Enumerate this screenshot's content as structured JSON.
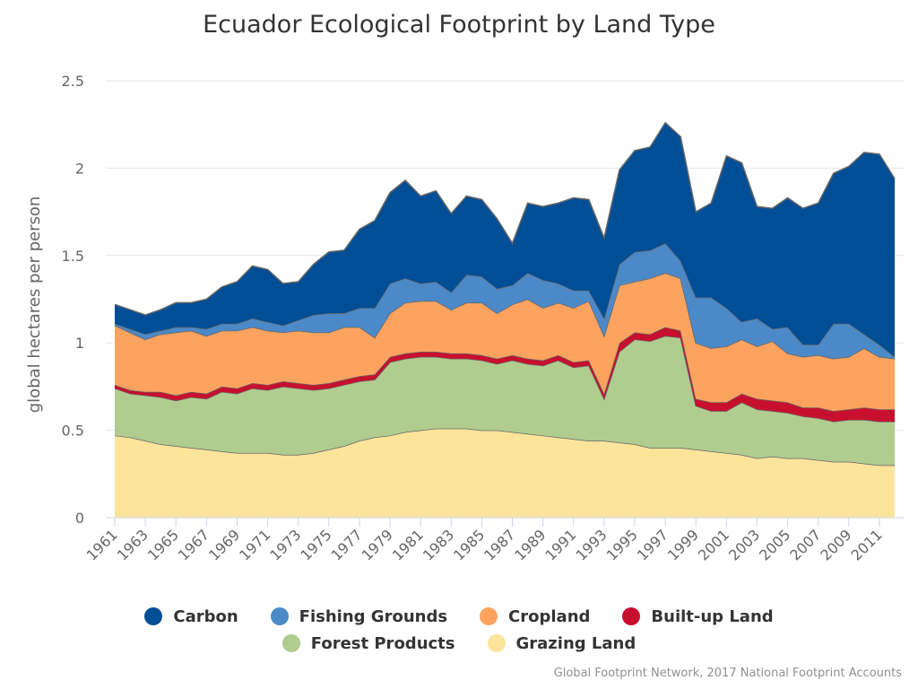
{
  "title": "Ecuador Ecological Footprint by Land Type",
  "credits": "Global Footprint Network, 2017 National Footprint Accounts",
  "chart_data": {
    "type": "area",
    "stacked": true,
    "title": "Ecuador Ecological Footprint by Land Type",
    "xlabel": "",
    "ylabel": "global hectares per person",
    "ylim": [
      0,
      2.5
    ],
    "yticks": [
      "0",
      "0.5",
      "1",
      "1.5",
      "2",
      "2.5"
    ],
    "xticks": [
      "1961",
      "1963",
      "1965",
      "1967",
      "1969",
      "1971",
      "1973",
      "1975",
      "1977",
      "1979",
      "1981",
      "1983",
      "1985",
      "1987",
      "1989",
      "1991",
      "1993",
      "1995",
      "1997",
      "1999",
      "2001",
      "2003",
      "2005",
      "2007",
      "2009",
      "2011"
    ],
    "grid": true,
    "legend_position": "bottom",
    "x": [
      1961,
      1962,
      1963,
      1964,
      1965,
      1966,
      1967,
      1968,
      1969,
      1970,
      1971,
      1972,
      1973,
      1974,
      1975,
      1976,
      1977,
      1978,
      1979,
      1980,
      1981,
      1982,
      1983,
      1984,
      1985,
      1986,
      1987,
      1988,
      1989,
      1990,
      1991,
      1992,
      1993,
      1994,
      1995,
      1996,
      1997,
      1998,
      1999,
      2000,
      2001,
      2002,
      2003,
      2004,
      2005,
      2006,
      2007,
      2008,
      2009,
      2010,
      2011,
      2012
    ],
    "series": [
      {
        "name": "Grazing Land",
        "color": "#fce49b",
        "values": [
          0.47,
          0.46,
          0.44,
          0.42,
          0.41,
          0.4,
          0.39,
          0.38,
          0.37,
          0.37,
          0.37,
          0.36,
          0.36,
          0.37,
          0.39,
          0.41,
          0.44,
          0.46,
          0.47,
          0.49,
          0.5,
          0.51,
          0.51,
          0.51,
          0.5,
          0.5,
          0.49,
          0.48,
          0.47,
          0.46,
          0.45,
          0.44,
          0.44,
          0.43,
          0.42,
          0.4,
          0.4,
          0.4,
          0.39,
          0.38,
          0.37,
          0.36,
          0.34,
          0.35,
          0.34,
          0.34,
          0.33,
          0.32,
          0.32,
          0.31,
          0.3,
          0.3
        ]
      },
      {
        "name": "Forest Products",
        "color": "#b1cc8f",
        "values": [
          0.27,
          0.25,
          0.26,
          0.27,
          0.26,
          0.29,
          0.29,
          0.34,
          0.34,
          0.37,
          0.36,
          0.39,
          0.38,
          0.36,
          0.35,
          0.35,
          0.34,
          0.33,
          0.42,
          0.42,
          0.42,
          0.41,
          0.4,
          0.4,
          0.4,
          0.38,
          0.41,
          0.4,
          0.4,
          0.44,
          0.41,
          0.43,
          0.24,
          0.52,
          0.6,
          0.61,
          0.64,
          0.63,
          0.25,
          0.23,
          0.24,
          0.3,
          0.28,
          0.26,
          0.26,
          0.24,
          0.24,
          0.23,
          0.24,
          0.25,
          0.25,
          0.25
        ]
      },
      {
        "name": "Built-up Land",
        "color": "#c8102e",
        "values": [
          0.02,
          0.02,
          0.02,
          0.03,
          0.03,
          0.03,
          0.03,
          0.03,
          0.03,
          0.03,
          0.03,
          0.03,
          0.03,
          0.03,
          0.03,
          0.03,
          0.03,
          0.03,
          0.03,
          0.03,
          0.03,
          0.03,
          0.03,
          0.03,
          0.03,
          0.03,
          0.03,
          0.03,
          0.03,
          0.03,
          0.03,
          0.03,
          0.03,
          0.05,
          0.04,
          0.04,
          0.05,
          0.04,
          0.04,
          0.05,
          0.05,
          0.05,
          0.06,
          0.06,
          0.06,
          0.05,
          0.06,
          0.06,
          0.06,
          0.07,
          0.07,
          0.07
        ]
      },
      {
        "name": "Cropland",
        "color": "#fda35f",
        "values": [
          0.34,
          0.33,
          0.3,
          0.33,
          0.36,
          0.35,
          0.33,
          0.32,
          0.33,
          0.32,
          0.31,
          0.28,
          0.3,
          0.3,
          0.29,
          0.3,
          0.28,
          0.21,
          0.25,
          0.29,
          0.29,
          0.29,
          0.25,
          0.29,
          0.3,
          0.26,
          0.29,
          0.34,
          0.3,
          0.3,
          0.31,
          0.34,
          0.33,
          0.33,
          0.29,
          0.32,
          0.31,
          0.3,
          0.32,
          0.31,
          0.32,
          0.31,
          0.3,
          0.34,
          0.28,
          0.29,
          0.3,
          0.3,
          0.3,
          0.34,
          0.3,
          0.29
        ]
      },
      {
        "name": "Fishing Grounds",
        "color": "#4c89c8",
        "values": [
          0.01,
          0.02,
          0.03,
          0.02,
          0.03,
          0.02,
          0.04,
          0.04,
          0.04,
          0.05,
          0.05,
          0.04,
          0.06,
          0.1,
          0.11,
          0.08,
          0.11,
          0.17,
          0.17,
          0.14,
          0.1,
          0.11,
          0.1,
          0.16,
          0.15,
          0.14,
          0.11,
          0.15,
          0.16,
          0.11,
          0.1,
          0.06,
          0.1,
          0.12,
          0.17,
          0.16,
          0.17,
          0.1,
          0.26,
          0.29,
          0.22,
          0.1,
          0.16,
          0.07,
          0.15,
          0.07,
          0.06,
          0.2,
          0.19,
          0.08,
          0.07,
          0.01
        ]
      },
      {
        "name": "Carbon",
        "color": "#004e96",
        "values": [
          0.11,
          0.11,
          0.11,
          0.12,
          0.14,
          0.14,
          0.17,
          0.21,
          0.24,
          0.3,
          0.3,
          0.24,
          0.22,
          0.29,
          0.35,
          0.36,
          0.45,
          0.5,
          0.52,
          0.56,
          0.5,
          0.52,
          0.45,
          0.45,
          0.44,
          0.4,
          0.24,
          0.4,
          0.42,
          0.46,
          0.53,
          0.52,
          0.46,
          0.54,
          0.58,
          0.59,
          0.69,
          0.71,
          0.49,
          0.54,
          0.87,
          0.91,
          0.64,
          0.69,
          0.74,
          0.78,
          0.81,
          0.86,
          0.9,
          1.04,
          1.09,
          1.02
        ]
      }
    ]
  },
  "legend": {
    "row1": [
      {
        "name": "Carbon",
        "color": "#004e96"
      },
      {
        "name": "Fishing Grounds",
        "color": "#4c89c8"
      },
      {
        "name": "Cropland",
        "color": "#fda35f"
      },
      {
        "name": "Built-up Land",
        "color": "#c8102e"
      }
    ],
    "row2": [
      {
        "name": "Forest Products",
        "color": "#b1cc8f"
      },
      {
        "name": "Grazing Land",
        "color": "#fce49b"
      }
    ]
  }
}
